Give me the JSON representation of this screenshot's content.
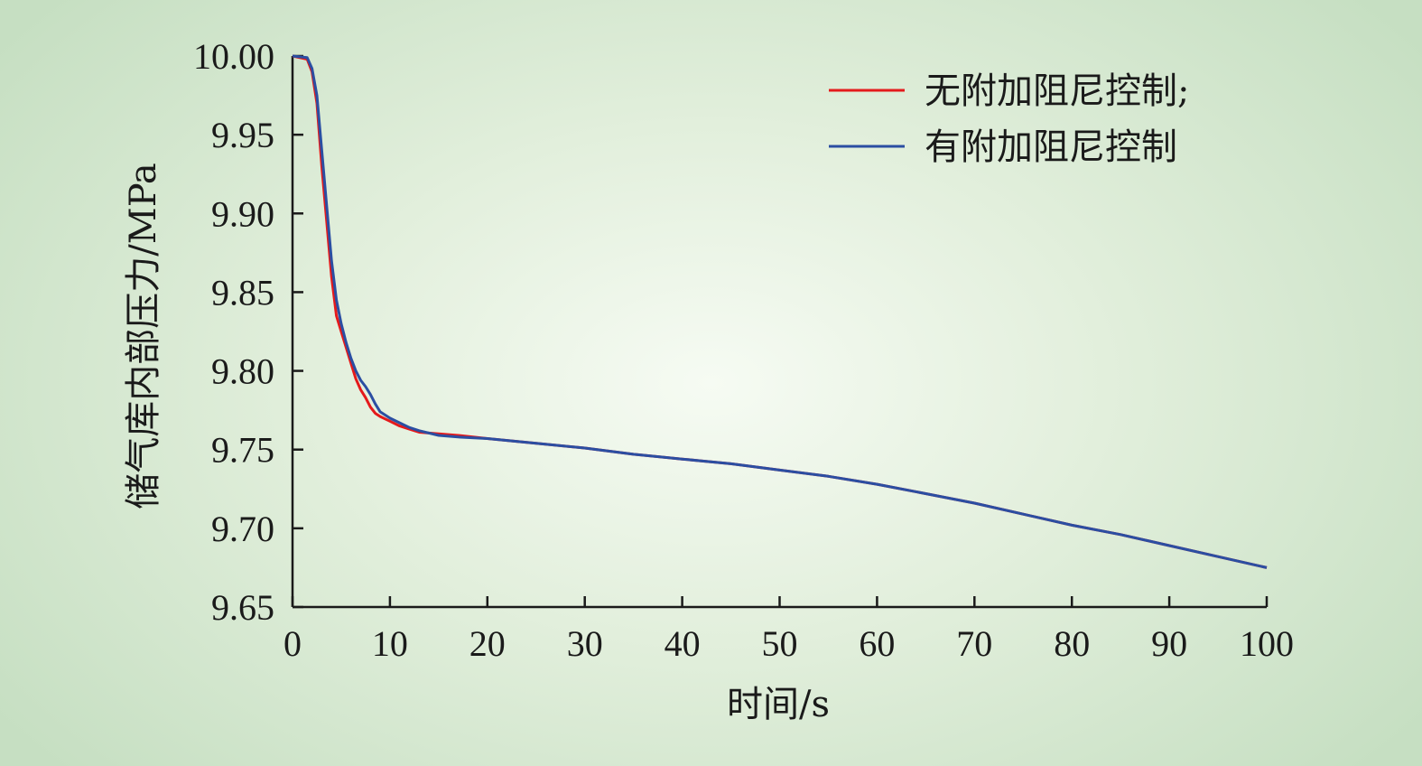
{
  "chart_data": {
    "type": "line",
    "xlabel": "时间/s",
    "ylabel": "储气库内部压力/MPa",
    "xlim": [
      0,
      100
    ],
    "ylim": [
      9.65,
      10.0
    ],
    "xticks": [
      "0",
      "10",
      "20",
      "30",
      "40",
      "50",
      "60",
      "70",
      "80",
      "90",
      "100"
    ],
    "yticks": [
      "10.00",
      "9.95",
      "9.90",
      "9.85",
      "9.80",
      "9.75",
      "9.70",
      "9.65"
    ],
    "grid": false,
    "legend_position": "top-right",
    "series": [
      {
        "name": "无附加阻尼控制;",
        "color": "#e41a1c",
        "x": [
          0,
          1.5,
          2,
          2.5,
          3,
          3.5,
          4,
          4.5,
          5,
          5.5,
          6,
          6.5,
          7,
          7.5,
          8,
          8.5,
          9,
          10,
          11,
          12,
          13,
          15,
          17,
          20,
          25,
          30,
          35,
          40,
          45,
          50,
          55,
          60,
          65,
          70,
          75,
          80,
          85,
          90,
          95,
          100
        ],
        "y": [
          10.0,
          9.998,
          9.99,
          9.97,
          9.93,
          9.895,
          9.86,
          9.835,
          9.825,
          9.815,
          9.805,
          9.795,
          9.788,
          9.783,
          9.777,
          9.773,
          9.771,
          9.768,
          9.765,
          9.763,
          9.761,
          9.76,
          9.759,
          9.757,
          9.754,
          9.751,
          9.747,
          9.744,
          9.741,
          9.737,
          9.733,
          9.728,
          9.722,
          9.716,
          9.709,
          9.702,
          9.696,
          9.689,
          9.682,
          9.675
        ]
      },
      {
        "name": "有附加阻尼控制",
        "color": "#2b4ea2",
        "x": [
          0,
          1.5,
          2,
          2.5,
          3,
          3.5,
          4,
          4.5,
          5,
          5.5,
          6,
          6.5,
          7,
          7.5,
          8,
          8.5,
          9,
          10,
          11,
          12,
          13,
          15,
          17,
          20,
          25,
          30,
          35,
          40,
          45,
          50,
          55,
          60,
          65,
          70,
          75,
          80,
          85,
          90,
          95,
          100
        ],
        "y": [
          10.0,
          9.999,
          9.992,
          9.975,
          9.94,
          9.905,
          9.87,
          9.845,
          9.83,
          9.818,
          9.808,
          9.8,
          9.794,
          9.79,
          9.785,
          9.779,
          9.774,
          9.77,
          9.767,
          9.764,
          9.762,
          9.759,
          9.758,
          9.757,
          9.754,
          9.751,
          9.747,
          9.744,
          9.741,
          9.737,
          9.733,
          9.728,
          9.722,
          9.716,
          9.709,
          9.702,
          9.696,
          9.689,
          9.682,
          9.675
        ]
      }
    ]
  }
}
